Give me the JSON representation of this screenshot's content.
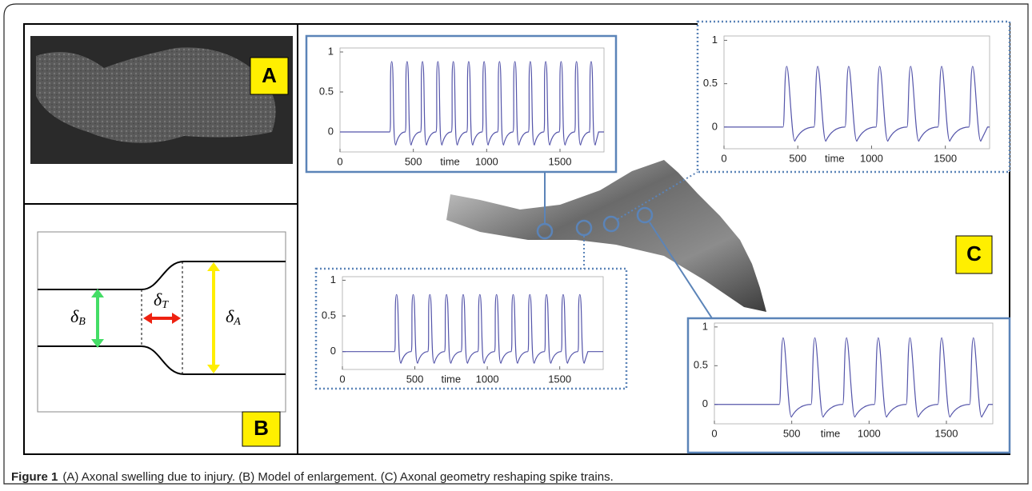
{
  "panels": {
    "A": {
      "label": "A"
    },
    "B": {
      "label": "B",
      "symbols": [
        {
          "symbol": "δ",
          "subscript": "B"
        },
        {
          "symbol": "δ",
          "subscript": "T"
        },
        {
          "symbol": "δ",
          "subscript": "A"
        }
      ]
    },
    "C": {
      "label": "C",
      "plots": [
        {
          "xlabel": "time",
          "xlim": [
            0,
            1800
          ],
          "ylim": [
            -0.25,
            1.05
          ],
          "xticks": [
            0,
            500,
            1000,
            1500
          ],
          "yticks": [
            0,
            0.5,
            1
          ],
          "spike_times": [
            340,
            445,
            550,
            655,
            760,
            865,
            970,
            1075,
            1180,
            1285,
            1390,
            1495,
            1600,
            1700
          ],
          "spike_peak": 0.88,
          "color": "#5555aa"
        },
        {
          "xlabel": "time",
          "xlim": [
            0,
            1800
          ],
          "ylim": [
            -0.25,
            1.05
          ],
          "xticks": [
            0,
            500,
            1000,
            1500
          ],
          "yticks": [
            0,
            0.5,
            1
          ],
          "spike_times": [
            400,
            610,
            820,
            1030,
            1240,
            1450,
            1660
          ],
          "spike_peak": 0.7,
          "color": "#5555aa"
        },
        {
          "xlabel": "time",
          "xlim": [
            0,
            1800
          ],
          "ylim": [
            -0.25,
            1.05
          ],
          "xticks": [
            0,
            500,
            1000,
            1500
          ],
          "yticks": [
            0,
            0.5,
            1
          ],
          "spike_times": [
            360,
            475,
            590,
            705,
            820,
            935,
            1050,
            1165,
            1280,
            1395,
            1510,
            1625
          ],
          "spike_peak": 0.8,
          "color": "#5555aa"
        },
        {
          "xlabel": "time",
          "xlim": [
            0,
            1800
          ],
          "ylim": [
            -0.25,
            1.05
          ],
          "xticks": [
            0,
            500,
            1000,
            1500
          ],
          "yticks": [
            0,
            0.5,
            1
          ],
          "spike_times": [
            420,
            625,
            830,
            1035,
            1240,
            1445,
            1650
          ],
          "spike_peak": 0.86,
          "color": "#5555aa"
        }
      ]
    }
  },
  "caption": {
    "figure": "Figure 1",
    "text": "(A) Axonal swelling due to injury. (B) Model of enlargement. (C) Axonal geometry reshaping spike trains."
  }
}
